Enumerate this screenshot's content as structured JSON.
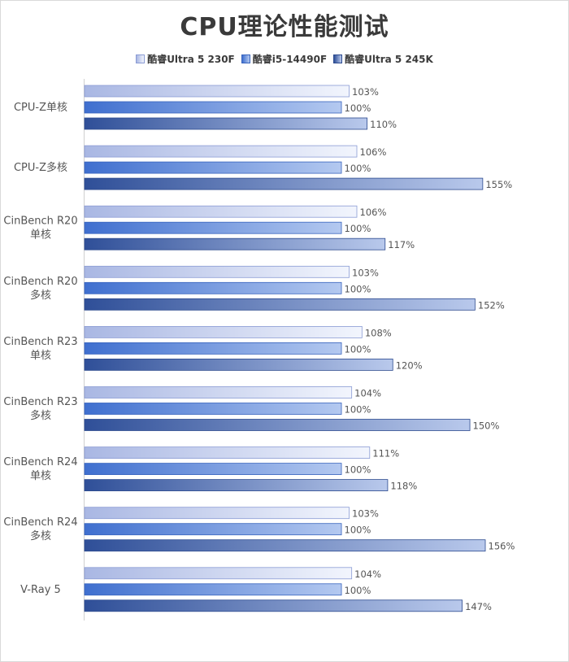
{
  "chart_data": {
    "type": "bar",
    "orientation": "horizontal",
    "title": "CPU理论性能测试",
    "value_suffix": "%",
    "categories": [
      [
        "CPU-Z单核"
      ],
      [
        "CPU-Z多核"
      ],
      [
        "CinBench R20",
        "单核"
      ],
      [
        "CinBench R20",
        "多核"
      ],
      [
        "CinBench R23",
        "单核"
      ],
      [
        "CinBench R23",
        "多核"
      ],
      [
        "CinBench R24",
        "单核"
      ],
      [
        "CinBench R24",
        "多核"
      ],
      [
        "V-Ray 5"
      ]
    ],
    "series": [
      {
        "name": "酷睿Ultra 5 230F",
        "values": [
          103,
          106,
          106,
          103,
          108,
          104,
          111,
          103,
          104
        ],
        "colors": [
          "#a9b7e3",
          "#f2f5fd"
        ],
        "border": "#8a9bd4"
      },
      {
        "name": "酷睿i5-14490F",
        "values": [
          100,
          100,
          100,
          100,
          100,
          100,
          100,
          100,
          100
        ],
        "colors": [
          "#3f6fcf",
          "#b4c9f0"
        ],
        "border": "#3763bd"
      },
      {
        "name": "酷睿Ultra 5 245K",
        "values": [
          110,
          155,
          117,
          152,
          120,
          150,
          118,
          156,
          147
        ],
        "colors": [
          "#2f4f98",
          "#b9c9ec"
        ],
        "border": "#2c4a8e"
      }
    ],
    "xlim": [
      0,
      159
    ],
    "grid": false,
    "legend_position": "top"
  }
}
